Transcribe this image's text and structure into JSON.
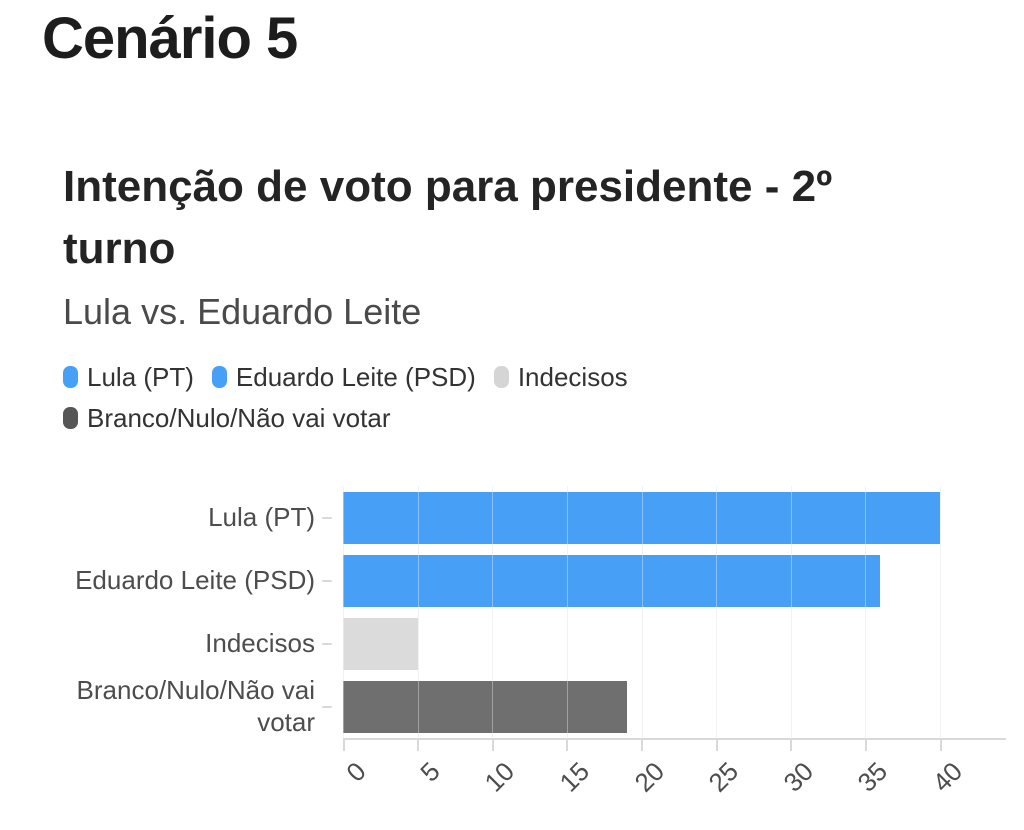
{
  "page": {
    "title": "Cenário 5"
  },
  "chart": {
    "title": "Intenção de voto para presidente - 2º turno",
    "subtitle": "Lula vs. Eduardo Leite"
  },
  "chart_data": {
    "type": "bar",
    "orientation": "horizontal",
    "title": "Intenção de voto para presidente - 2º turno",
    "subtitle": "Lula vs. Eduardo Leite",
    "categories": [
      "Lula (PT)",
      "Eduardo Leite (PSD)",
      "Indecisos",
      "Branco/Nulo/Não vai votar"
    ],
    "values": [
      40,
      36,
      5,
      19
    ],
    "bar_colors": [
      "#47A0F5",
      "#47A0F5",
      "#DBDBDB",
      "#6F6F6F"
    ],
    "legend": [
      {
        "label": "Lula (PT)",
        "color": "#45A0F6"
      },
      {
        "label": "Eduardo Leite (PSD)",
        "color": "#45A0F6"
      },
      {
        "label": "Indecisos",
        "color": "#D5D5D5"
      },
      {
        "label": "Branco/Nulo/Não vai votar",
        "color": "#565656"
      }
    ],
    "legend_position": "top",
    "xlabel": "",
    "ylabel": "",
    "xlim": [
      0,
      40
    ],
    "xticks": [
      0,
      5,
      10,
      15,
      20,
      25,
      30,
      35,
      40
    ],
    "xtick_rotation": -45,
    "grid": true
  }
}
